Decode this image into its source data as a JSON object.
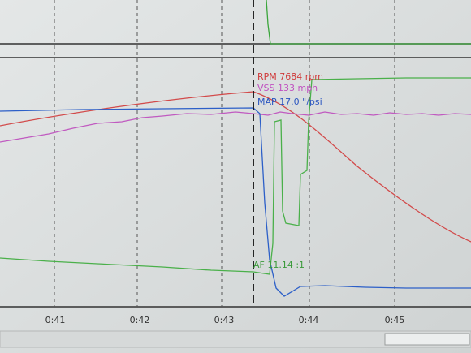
{
  "cursor_readout": {
    "rpm": "RPM 7684 rpm",
    "vss": "VSS 133 mph",
    "map": "MAP 17.0 \"/psi",
    "af": "AF 11.14 :1"
  },
  "time_axis": {
    "ticks": [
      "0:41",
      "0:42",
      "0:43",
      "0:44",
      "0:45"
    ]
  }
}
